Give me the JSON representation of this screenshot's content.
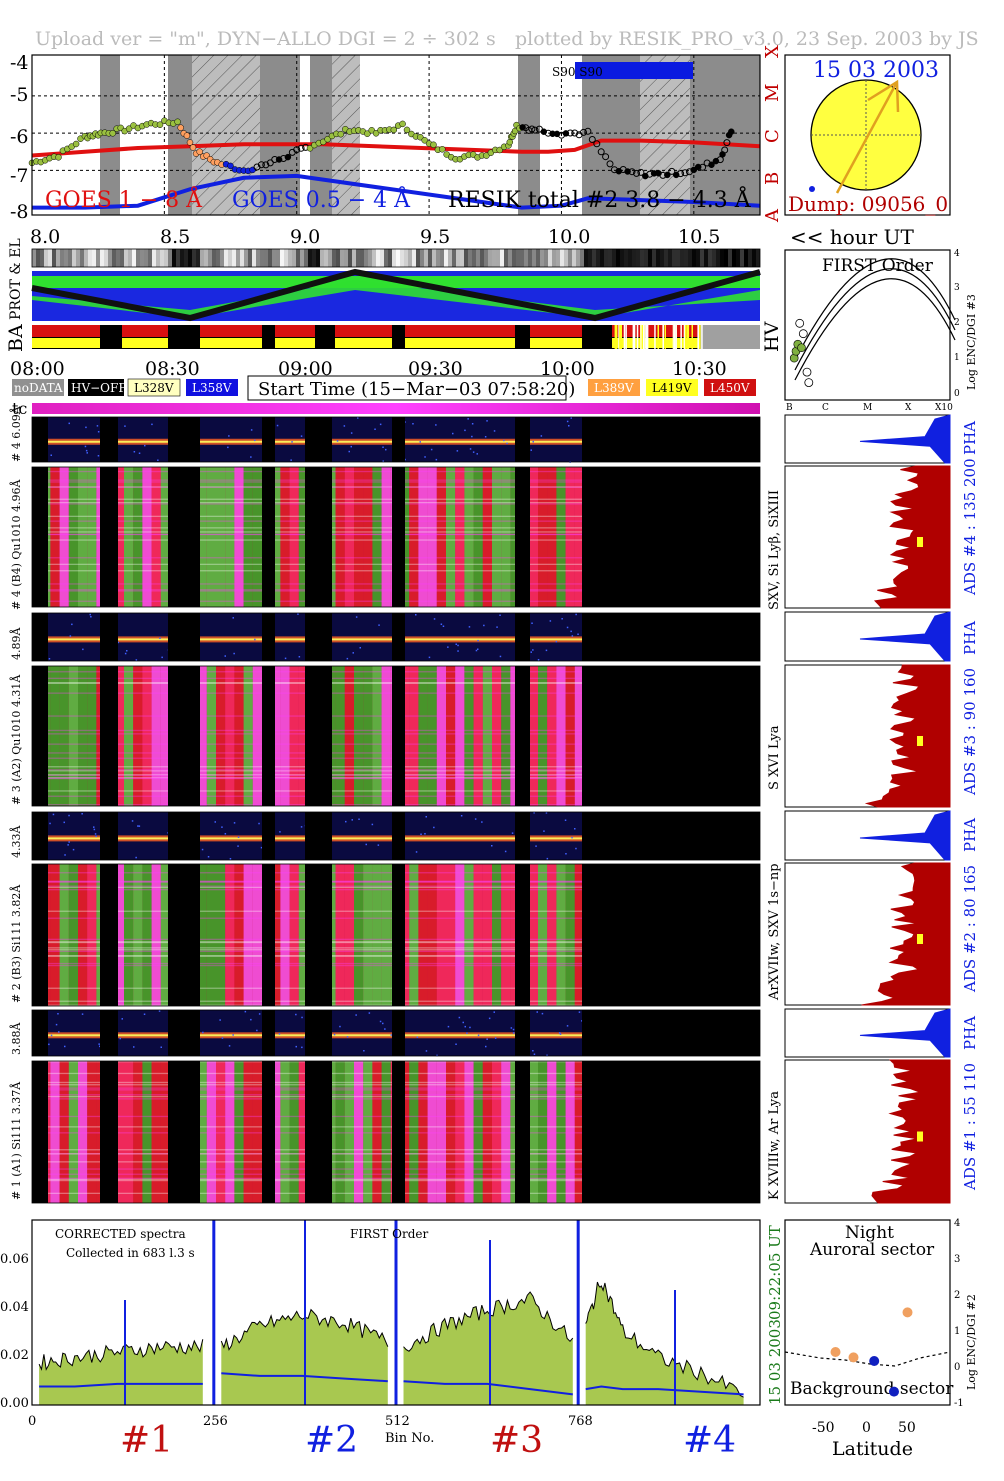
{
  "header": {
    "left": "Upload ver = \"m\", DYN−ALLO DGI =   2 ÷ 302 s",
    "right": "plotted by RESIK_PRO_v3.0, 23 Sep. 2003 by JS"
  },
  "goes_panel": {
    "y_ticks": [
      "-4",
      "-5",
      "-6",
      "-7",
      "-8"
    ],
    "x_ticks": [
      "8.0",
      "8.5",
      "9.0",
      "9.5",
      "10.0",
      "10.5"
    ],
    "class_letters": [
      "X",
      "M",
      "C",
      "B",
      "A"
    ],
    "s90_label": "S90 S90",
    "legend_goes_long": "GOES 1 − 8 Å",
    "legend_goes_short": "GOES 0.5 − 4 Å",
    "legend_resik": "RESIK total #2  3.8 − 4.3 Å",
    "hour_ut": "<< hour UT"
  },
  "sun_panel": {
    "date": "15 03 2003",
    "dump": "Dump: 09056_0"
  },
  "strips": {
    "prot_el": "PROT & EL",
    "ba": "BA",
    "hv": "HV",
    "time_ticks": [
      "08:00",
      "08:30",
      "09:00",
      "09:30",
      "10:00",
      "10:30"
    ]
  },
  "legend_boxes": {
    "nodata": "noDATA",
    "hvoff": "HV−OFF",
    "l328": "L328V",
    "l358": "L358V",
    "start_time": "Start Time (15−Mar−03 07:58:20)",
    "l389": "L389V",
    "l419": "L419V",
    "l450": "L450V",
    "colors": {
      "l328": "#ffffc0",
      "l358": "#1010e0",
      "l389": "#ffa040",
      "l419": "#ffff20",
      "l450": "#d01010"
    }
  },
  "first_order_plot": {
    "title": "FIRST Order",
    "ylabel": "Log ENC/DGI #3",
    "y_ticks": [
      "4",
      "3",
      "2",
      "1",
      "0"
    ],
    "x_ticks": [
      "B",
      "C",
      "M",
      "X",
      "X10"
    ]
  },
  "tc_label": "tc",
  "spectrogram_labels": {
    "pha4": "# 4  6.09Å",
    "ch4": "# 4 (B4) Qu1010  4.96Å",
    "pha3": "4.89Å",
    "ch3": "# 3 (A2) Qu1010  4.31Å",
    "pha2": "4.33Å",
    "ch2": "# 2 (B3) Si111  3.82Å",
    "pha1": "3.88Å",
    "ch1": "# 1 (A1) Si111  3.37Å"
  },
  "side_panels": {
    "pha": "PHA",
    "ads4": "ADS #4 :  135 200",
    "ads3": "ADS #3 :   90 160",
    "ads2": "ADS #2 :   80 165",
    "ads1": "ADS #1 :   55 110",
    "lines4": "SXV, Si Lyβ, SiXIII",
    "lines3": "S XVI Lya",
    "lines2": "ArXVIIw, SXV 1s−np",
    "lines1": "K XVIIIw, Ar Lya"
  },
  "spectrum_panel": {
    "title": "CORRECTED spectra",
    "collected": "Collected in  683 l.3 s",
    "order": "FIRST Order",
    "y_ticks": [
      "0.06",
      "0.04",
      "0.02",
      "0.00"
    ],
    "x_ticks": [
      "0",
      "256",
      "512",
      "768"
    ],
    "xlabel": "Bin No.",
    "channels": [
      "#1",
      "#2",
      "#3",
      "#4"
    ],
    "time": "09:22:05 UT",
    "date": "15 03 2003"
  },
  "latitude_panel": {
    "night": "Night",
    "auroral": "Auroral sector",
    "background": "Background sector",
    "xlabel": "Latitude",
    "ylabel": "Log ENC/DGI #2",
    "x_ticks": [
      "-50",
      "0",
      "50"
    ],
    "y_ticks": [
      "4",
      "3",
      "2",
      "1",
      "0",
      "-1"
    ]
  },
  "chart_data": {
    "type": "line",
    "goes_panel": {
      "x_unit": "hour UT",
      "xlim": [
        8.0,
        10.75
      ],
      "ylim": [
        -8.2,
        -3.9
      ],
      "goes_long_red": {
        "x": [
          8.0,
          8.2,
          8.4,
          8.6,
          8.8,
          8.9,
          9.0,
          9.1,
          9.85,
          9.95,
          10.05,
          10.15,
          10.3,
          10.5,
          10.75
        ],
        "y": [
          -6.6,
          -6.5,
          -6.4,
          -6.35,
          -6.3,
          -6.3,
          -6.3,
          -6.3,
          -6.5,
          -6.5,
          -6.45,
          -6.2,
          -6.2,
          -6.25,
          -6.35
        ]
      },
      "goes_short_blue": {
        "x": [
          8.0,
          8.2,
          8.4,
          8.6,
          8.8,
          9.0,
          9.85,
          10.0,
          10.1,
          10.3,
          10.5,
          10.75
        ],
        "y": [
          -8.0,
          -8.0,
          -7.95,
          -7.5,
          -7.2,
          -7.15,
          -8.0,
          -7.95,
          -7.75,
          -7.8,
          -7.85,
          -7.95
        ]
      },
      "resik_total": {
        "x": [
          8.0,
          8.1,
          8.2,
          8.26,
          8.35,
          8.45,
          8.55,
          8.62,
          8.7,
          8.8,
          8.9,
          9.0,
          9.1,
          9.2,
          9.3,
          9.4,
          9.5,
          9.6,
          9.7,
          9.8,
          9.83,
          9.9,
          10.0,
          10.1,
          10.2,
          10.3,
          10.4,
          10.5,
          10.6,
          10.65
        ],
        "y": [
          -6.8,
          -6.6,
          -6.1,
          -6.0,
          -5.9,
          -5.75,
          -5.7,
          -6.5,
          -6.8,
          -7.0,
          -6.8,
          -6.5,
          -6.2,
          -5.9,
          -6.0,
          -5.8,
          -6.3,
          -6.65,
          -6.6,
          -6.3,
          -5.8,
          -5.9,
          -6.0,
          -6.0,
          -7.0,
          -7.1,
          -7.1,
          -7.0,
          -6.7,
          -5.8
        ]
      }
    },
    "spectrum": {
      "x_unit": "Bin No.",
      "xlim": [
        0,
        1023
      ],
      "ylim": [
        0,
        0.07
      ],
      "channels": [
        {
          "name": "#1",
          "bins": [
            10,
            60,
            120,
            180,
            240
          ],
          "green": [
            0.016,
            0.018,
            0.02,
            0.022,
            0.022
          ],
          "blue": [
            0.007,
            0.007,
            0.008,
            0.008,
            0.008
          ]
        },
        {
          "name": "#2",
          "bins": [
            266,
            320,
            380,
            440,
            500
          ],
          "green": [
            0.022,
            0.03,
            0.034,
            0.031,
            0.024
          ],
          "blue": [
            0.012,
            0.011,
            0.011,
            0.01,
            0.009
          ]
        },
        {
          "name": "#3",
          "bins": [
            522,
            580,
            640,
            700,
            760
          ],
          "green": [
            0.022,
            0.03,
            0.036,
            0.04,
            0.024
          ],
          "blue": [
            0.009,
            0.008,
            0.008,
            0.006,
            0.004
          ]
        },
        {
          "name": "#4",
          "bins": [
            778,
            800,
            830,
            880,
            940,
            1000
          ],
          "green": [
            0.03,
            0.048,
            0.028,
            0.018,
            0.012,
            0.004
          ],
          "blue": [
            0.006,
            0.007,
            0.006,
            0.006,
            0.005,
            0.004
          ]
        }
      ]
    },
    "first_order": {
      "points_green": [
        {
          "x": 0.95,
          "y": 1.2
        },
        {
          "x": 1.0,
          "y": 1.4
        },
        {
          "x": 1.05,
          "y": 1.6
        },
        {
          "x": 1.15,
          "y": 1.5
        }
      ],
      "points_open": [
        {
          "x": 1.1,
          "y": 2.2
        },
        {
          "x": 1.2,
          "y": 1.9
        },
        {
          "x": 1.3,
          "y": 0.8
        },
        {
          "x": 1.35,
          "y": 0.5
        }
      ]
    },
    "latitude_points": {
      "orange": [
        {
          "lat": -35,
          "log": 0.5
        },
        {
          "lat": -15,
          "log": 0.35
        },
        {
          "lat": 45,
          "log": 1.6
        }
      ],
      "blue": [
        {
          "lat": 8,
          "log": 0.25
        },
        {
          "lat": 30,
          "log": -0.6
        }
      ]
    }
  }
}
